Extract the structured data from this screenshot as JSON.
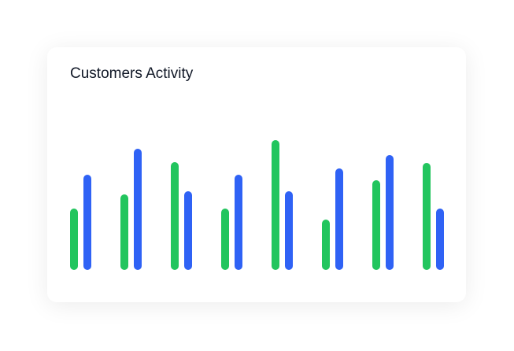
{
  "chart_data": {
    "type": "grouped-bar",
    "title": "Customers Activity",
    "series": [
      {
        "color": "#22c55e",
        "values": [
          78,
          96,
          137,
          78,
          165,
          64,
          114,
          136
        ]
      },
      {
        "color": "#2f62f5",
        "values": [
          121,
          154,
          100,
          121,
          100,
          129,
          146,
          78
        ]
      }
    ],
    "ylim": [
      0,
      170
    ]
  }
}
